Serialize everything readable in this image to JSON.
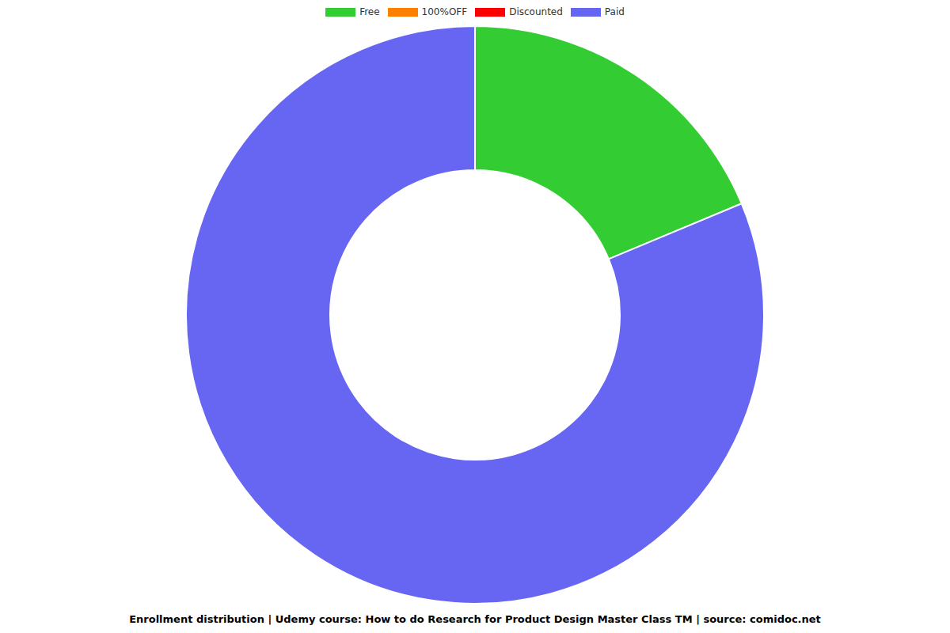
{
  "chart_data": {
    "type": "pie",
    "title": "Enrollment distribution | Udemy course: How to do Research for Product Design Master Class TM | source: comidoc.net",
    "categories": [
      "Free",
      "100%OFF",
      "Discounted",
      "Paid"
    ],
    "values": [
      18.7,
      0,
      0,
      81.3
    ],
    "colors": [
      "#33cc33",
      "#ff8000",
      "#ff0000",
      "#6666f2"
    ],
    "legend": "top"
  }
}
